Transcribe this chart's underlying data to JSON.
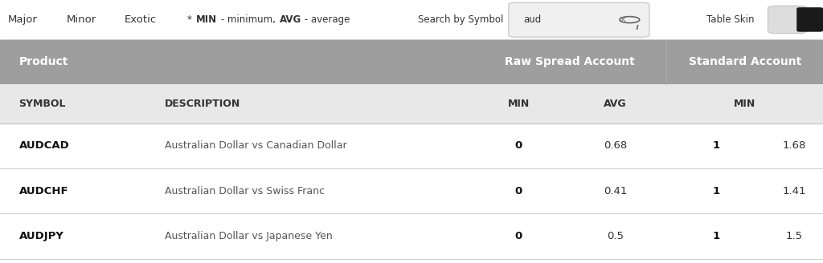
{
  "bg_color": "#ffffff",
  "top_bar_bg": "#ffffff",
  "header_bg": "#9e9e9e",
  "subheader_bg": "#e8e8e8",
  "row_bg": "#ffffff",
  "divider_color": "#d0d0d0",
  "top_labels": [
    "Major",
    "Minor",
    "Exotic"
  ],
  "search_label": "Search by Symbol",
  "search_text": "aud",
  "table_skin_label": "Table Skin",
  "col1_header": "Product",
  "raw_spread_header": "Raw Spread Account",
  "standard_header": "Standard Account",
  "sub_col1": "SYMBOL",
  "sub_col2": "DESCRIPTION",
  "sub_col3": "MIN",
  "sub_col4": "AVG",
  "sub_col5": "MIN",
  "rows": [
    {
      "symbol": "AUDCAD",
      "description": "Australian Dollar vs Canadian Dollar",
      "raw_min": "0",
      "raw_avg": "0.68",
      "std_min_bold": "1",
      "std_min": "1.68"
    },
    {
      "symbol": "AUDCHF",
      "description": "Australian Dollar vs Swiss Franc",
      "raw_min": "0",
      "raw_avg": "0.41",
      "std_min_bold": "1",
      "std_min": "1.41"
    },
    {
      "symbol": "AUDJPY",
      "description": "Australian Dollar vs Japanese Yen",
      "raw_min": "0",
      "raw_avg": "0.5",
      "std_min_bold": "1",
      "std_min": "1.5"
    }
  ],
  "col_x": {
    "symbol": 0.018,
    "description": 0.195,
    "raw_min": 0.555,
    "raw_avg": 0.685,
    "std_min_bold": 0.81,
    "std_min": 0.93
  },
  "header_text_color": "#ffffff",
  "subheader_text_color": "#333333",
  "row_symbol_color": "#111111",
  "row_desc_color": "#555555",
  "row_data_color": "#333333",
  "top_text_color": "#333333",
  "min_bold_color": "#111111"
}
